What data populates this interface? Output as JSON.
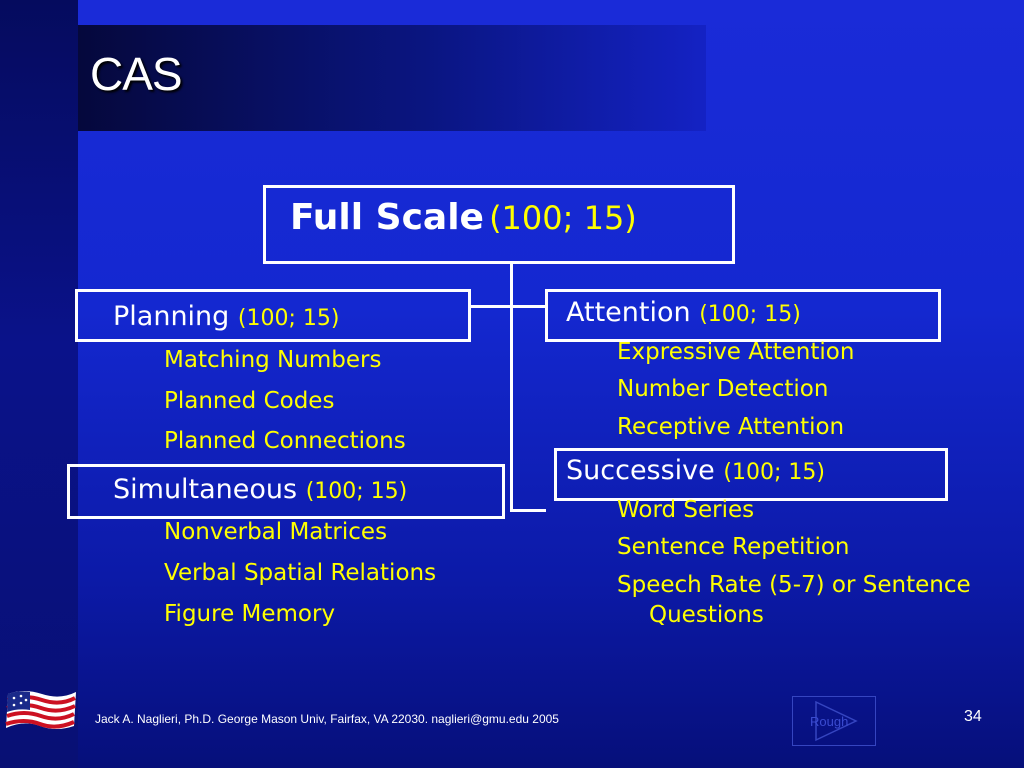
{
  "slide": {
    "title": "CAS",
    "page_number": "34"
  },
  "full_scale": {
    "label": "Full Scale",
    "score": "(100; 15)"
  },
  "scales": [
    {
      "name": "Planning",
      "score": "(100; 15)",
      "subtests": [
        "Matching Numbers",
        "Planned Codes",
        "Planned Connections"
      ]
    },
    {
      "name": "Simultaneous",
      "score": "(100; 15)",
      "subtests": [
        "Nonverbal Matrices",
        "Verbal Spatial Relations",
        "Figure Memory"
      ]
    },
    {
      "name": "Attention",
      "score": "(100; 15)",
      "subtests": [
        "Expressive Attention",
        "Number Detection",
        "Receptive Attention"
      ]
    },
    {
      "name": "Successive",
      "score": "(100; 15)",
      "subtests": [
        "Word Series",
        "Sentence Repetition",
        "Speech Rate (5-7) or Sentence",
        "Questions"
      ]
    }
  ],
  "footer": {
    "credit": "Jack A. Naglieri, Ph.D.  George Mason Univ, Fairfax, VA 22030.  naglieri@gmu.edu 2005",
    "nav_label": "Rough"
  },
  "colors": {
    "label": "#ffffff",
    "score": "#ffff00",
    "subtest": "#ffff00"
  },
  "icons": {
    "logo": "american-flag-icon",
    "nav": "play-triangle-icon"
  }
}
